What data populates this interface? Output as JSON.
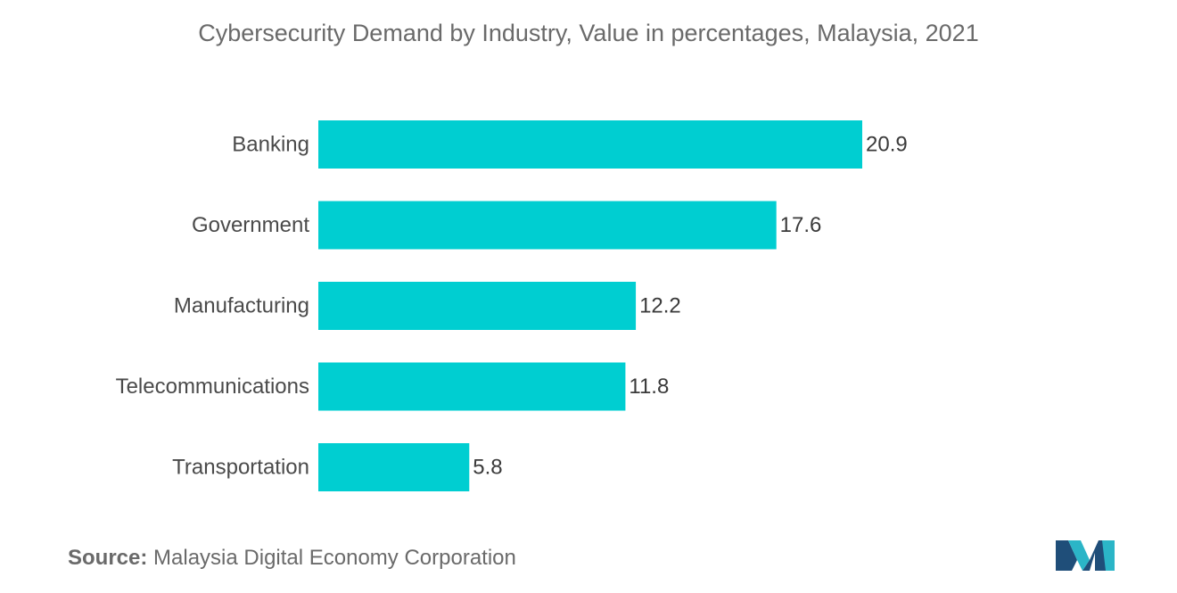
{
  "chart_data": {
    "type": "bar",
    "orientation": "horizontal",
    "title": "Cybersecurity Demand by Industry, Value in percentages, Malaysia, 2021",
    "categories": [
      "Banking",
      "Government",
      "Manufacturing",
      "Telecommunications",
      "Transportation"
    ],
    "values": [
      20.9,
      17.6,
      12.2,
      11.8,
      5.8
    ],
    "value_labels": [
      "20.9",
      "17.6",
      "12.2",
      "11.8",
      "5.8"
    ],
    "xlim": [
      0,
      20.9
    ],
    "grid": false,
    "legend": "none",
    "bar_color": "#00ced1"
  },
  "source": {
    "label": "Source:",
    "text": "Malaysia Digital Economy Corporation"
  },
  "logo": {
    "icon": "mordor-intelligence-logo",
    "colors": [
      "#1f4e79",
      "#2bb5c7"
    ]
  }
}
